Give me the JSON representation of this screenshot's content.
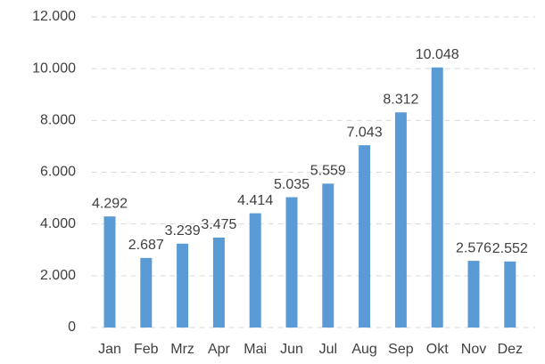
{
  "chart_data": {
    "type": "bar",
    "categories": [
      "Jan",
      "Feb",
      "Mrz",
      "Apr",
      "Mai",
      "Jun",
      "Jul",
      "Aug",
      "Sep",
      "Okt",
      "Nov",
      "Dez"
    ],
    "values": [
      4292,
      2687,
      3239,
      3475,
      4414,
      5035,
      5559,
      7043,
      8312,
      10048,
      2576,
      2552
    ],
    "value_labels": [
      "4.292",
      "2.687",
      "3.239",
      "3.475",
      "4.414",
      "5.035",
      "5.559",
      "7.043",
      "8.312",
      "10.048",
      "2.576",
      "2.552"
    ],
    "color": "#5b9bd5",
    "ylim": [
      0,
      12000
    ],
    "yticks": [
      0,
      {
        "value": 2000,
        "label": "2.000"
      },
      {
        "value": 4000,
        "label": "4.000"
      },
      {
        "value": 6000,
        "label": "6.000"
      },
      {
        "value": 8000,
        "label": "8.000"
      },
      {
        "value": 10000,
        "label": "10.000"
      },
      {
        "value": 12000,
        "label": "12.000"
      }
    ],
    "grid": true
  }
}
